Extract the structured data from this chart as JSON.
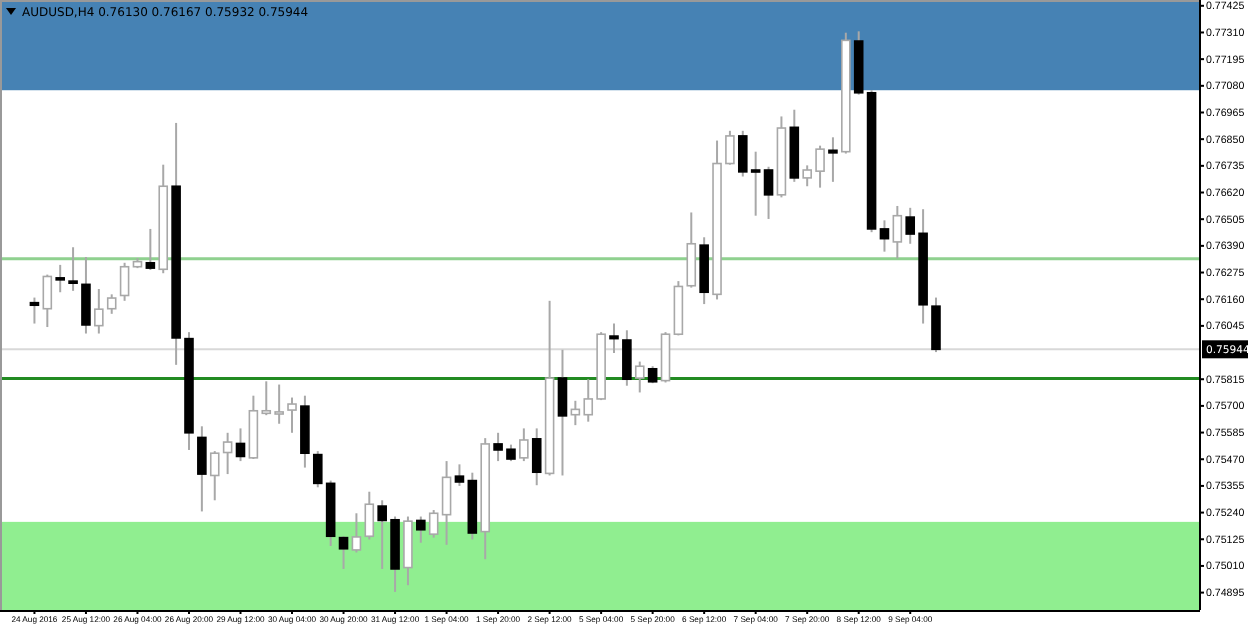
{
  "chart_data": {
    "type": "candlestick",
    "title": "AUDUSD,H4  0.76130 0.76167 0.75932 0.75944",
    "categories": [
      "24 Aug 2016",
      null,
      null,
      null,
      "25 Aug 12:00",
      null,
      null,
      null,
      "26 Aug 04:00",
      null,
      null,
      null,
      "26 Aug 20:00",
      null,
      null,
      null,
      "29 Aug 12:00",
      null,
      null,
      null,
      "30 Aug 04:00",
      null,
      null,
      null,
      "30 Aug 20:00",
      null,
      null,
      null,
      "31 Aug 12:00",
      null,
      null,
      null,
      "1 Sep 04:00",
      null,
      null,
      null,
      "1 Sep 20:00",
      null,
      null,
      null,
      "2 Sep 12:00",
      null,
      null,
      null,
      "5 Sep 04:00",
      null,
      null,
      null,
      "5 Sep 20:00",
      null,
      null,
      null,
      "6 Sep 12:00",
      null,
      null,
      null,
      "7 Sep 04:00",
      null,
      null,
      null,
      "7 Sep 20:00",
      null,
      null,
      null,
      "8 Sep 12:00",
      null,
      null,
      null,
      "9 Sep 04:00",
      null,
      null,
      null,
      null,
      null,
      null,
      null,
      null,
      null,
      null,
      null,
      null,
      null,
      null,
      null,
      null,
      null,
      null,
      null,
      null,
      null,
      null
    ],
    "ohlc": [
      [
        0.76145,
        0.76167,
        0.76055,
        0.76134
      ],
      [
        0.76119,
        0.76266,
        0.7604,
        0.76258
      ],
      [
        0.76252,
        0.76308,
        0.7619,
        0.76246
      ],
      [
        0.76238,
        0.76384,
        0.76196,
        0.76229
      ],
      [
        0.76224,
        0.76342,
        0.76012,
        0.76049
      ],
      [
        0.76046,
        0.76204,
        0.76012,
        0.76117
      ],
      [
        0.76119,
        0.76181,
        0.76097,
        0.76165
      ],
      [
        0.76176,
        0.76317,
        0.76153,
        0.763
      ],
      [
        0.763,
        0.76337,
        0.76294,
        0.76322
      ],
      [
        0.76317,
        0.76463,
        0.76286,
        0.76294
      ],
      [
        0.76289,
        0.7674,
        0.76272,
        0.76647
      ],
      [
        0.76647,
        0.7692,
        0.75877,
        0.75993
      ],
      [
        0.7599,
        0.76018,
        0.7551,
        0.75584
      ],
      [
        0.75564,
        0.75612,
        0.75245,
        0.75406
      ],
      [
        0.754,
        0.75505,
        0.75293,
        0.75496
      ],
      [
        0.75499,
        0.75584,
        0.75406,
        0.75544
      ],
      [
        0.75538,
        0.75603,
        0.75462,
        0.75482
      ],
      [
        0.75476,
        0.75744,
        0.75471,
        0.75679
      ],
      [
        0.75668,
        0.75806,
        0.7566,
        0.75679
      ],
      [
        0.75665,
        0.75792,
        0.75623,
        0.75674
      ],
      [
        0.75682,
        0.75736,
        0.75584,
        0.75708
      ],
      [
        0.75699,
        0.75744,
        0.75434,
        0.75496
      ],
      [
        0.7549,
        0.75505,
        0.75349,
        0.75366
      ],
      [
        0.75366,
        0.75378,
        0.75096,
        0.75138
      ],
      [
        0.75132,
        0.75138,
        0.74997,
        0.75084
      ],
      [
        0.75079,
        0.75237,
        0.75068,
        0.75135
      ],
      [
        0.75138,
        0.7533,
        0.75124,
        0.75276
      ],
      [
        0.75268,
        0.75293,
        0.74997,
        0.75206
      ],
      [
        0.75209,
        0.75223,
        0.74898,
        0.74997
      ],
      [
        0.75003,
        0.75223,
        0.74927,
        0.75203
      ],
      [
        0.75206,
        0.75223,
        0.7511,
        0.75166
      ],
      [
        0.75147,
        0.75251,
        0.75132,
        0.75237
      ],
      [
        0.75231,
        0.75462,
        0.75101,
        0.75392
      ],
      [
        0.75397,
        0.75448,
        0.75355,
        0.75372
      ],
      [
        0.75378,
        0.75412,
        0.75124,
        0.75152
      ],
      [
        0.75158,
        0.75561,
        0.75039,
        0.75536
      ],
      [
        0.75536,
        0.75584,
        0.75462,
        0.7551
      ],
      [
        0.75513,
        0.75533,
        0.75462,
        0.75471
      ],
      [
        0.75476,
        0.75603,
        0.75462,
        0.75553
      ],
      [
        0.75558,
        0.75603,
        0.75358,
        0.75414
      ],
      [
        0.75409,
        0.76153,
        0.754,
        0.7582
      ],
      [
        0.7582,
        0.75942,
        0.754,
        0.75657
      ],
      [
        0.75662,
        0.75722,
        0.75617,
        0.75685
      ],
      [
        0.75662,
        0.75815,
        0.75632,
        0.7573
      ],
      [
        0.7573,
        0.76018,
        0.75725,
        0.76009
      ],
      [
        0.76001,
        0.76055,
        0.75928,
        0.7599
      ],
      [
        0.75984,
        0.76026,
        0.75787,
        0.75815
      ],
      [
        0.7582,
        0.75891,
        0.75758,
        0.75871
      ],
      [
        0.7586,
        0.75871,
        0.75798,
        0.75804
      ],
      [
        0.75809,
        0.76018,
        0.75801,
        0.76009
      ],
      [
        0.76009,
        0.76238,
        0.76004,
        0.76215
      ],
      [
        0.76218,
        0.76534,
        0.7621,
        0.76399
      ],
      [
        0.76393,
        0.76427,
        0.76139,
        0.7619
      ],
      [
        0.76181,
        0.76844,
        0.76159,
        0.76745
      ],
      [
        0.76745,
        0.76886,
        0.7674,
        0.76864
      ],
      [
        0.76864,
        0.76886,
        0.76689,
        0.76709
      ],
      [
        0.76717,
        0.76796,
        0.7652,
        0.76709
      ],
      [
        0.76717,
        0.76731,
        0.76506,
        0.7661
      ],
      [
        0.7661,
        0.76948,
        0.76599,
        0.76898
      ],
      [
        0.76901,
        0.76977,
        0.76666,
        0.76683
      ],
      [
        0.76683,
        0.76737,
        0.76647,
        0.76717
      ],
      [
        0.76712,
        0.76822,
        0.76641,
        0.76807
      ],
      [
        0.76802,
        0.76858,
        0.76666,
        0.76791
      ],
      [
        0.76796,
        0.77309,
        0.76788,
        0.77276
      ],
      [
        0.77273,
        0.77315,
        0.77042,
        0.7705
      ],
      [
        0.7705,
        0.77061,
        0.76449,
        0.76463
      ],
      [
        0.76463,
        0.765,
        0.76365,
        0.76421
      ],
      [
        0.76407,
        0.76562,
        0.76336,
        0.7652
      ],
      [
        0.76514,
        0.76554,
        0.76399,
        0.76441
      ],
      [
        0.76444,
        0.76548,
        0.76055,
        0.76136
      ],
      [
        0.7613,
        0.76167,
        0.75932,
        0.75944
      ],
      null,
      null,
      null,
      null,
      null,
      null,
      null,
      null,
      null,
      null,
      null,
      null,
      null,
      null,
      null,
      null,
      null,
      null,
      null,
      null
    ],
    "ylim": [
      0.7482,
      0.7745
    ],
    "yticks": [
      {
        "value": 0.77425,
        "label": "0.77425"
      },
      {
        "value": 0.7731,
        "label": "0.77310"
      },
      {
        "value": 0.77195,
        "label": "0.77195"
      },
      {
        "value": 0.7708,
        "label": "0.77080"
      },
      {
        "value": 0.76965,
        "label": "0.76965"
      },
      {
        "value": 0.7685,
        "label": "0.76850"
      },
      {
        "value": 0.76735,
        "label": "0.76735"
      },
      {
        "value": 0.7662,
        "label": "0.76620"
      },
      {
        "value": 0.76505,
        "label": "0.76505"
      },
      {
        "value": 0.7639,
        "label": "0.76390"
      },
      {
        "value": 0.76275,
        "label": "0.76275"
      },
      {
        "value": 0.7616,
        "label": "0.76160"
      },
      {
        "value": 0.76045,
        "label": "0.76045"
      },
      {
        "value": 0.75815,
        "label": "0.75815"
      },
      {
        "value": 0.757,
        "label": "0.75700"
      },
      {
        "value": 0.75585,
        "label": "0.75585"
      },
      {
        "value": 0.7547,
        "label": "0.75470"
      },
      {
        "value": 0.75355,
        "label": "0.75355"
      },
      {
        "value": 0.7524,
        "label": "0.75240"
      },
      {
        "value": 0.75125,
        "label": "0.75125"
      },
      {
        "value": 0.7501,
        "label": "0.75010"
      },
      {
        "value": 0.74895,
        "label": "0.74895"
      }
    ],
    "bands": [
      {
        "axis": "y",
        "from": 0.77061,
        "to": 0.7745,
        "color": "#4682b4"
      },
      {
        "axis": "y",
        "from": 0.7482,
        "to": 0.752,
        "color": "#90ee90"
      }
    ],
    "ref_lines": [
      {
        "axis": "y",
        "value": 0.76334,
        "color": "#8fd18f"
      },
      {
        "axis": "y",
        "value": 0.75818,
        "color": "#228b22"
      },
      {
        "axis": "y",
        "value": 0.75944,
        "label": "0.75944",
        "color": "#d8d8d8"
      }
    ],
    "grid": false
  }
}
